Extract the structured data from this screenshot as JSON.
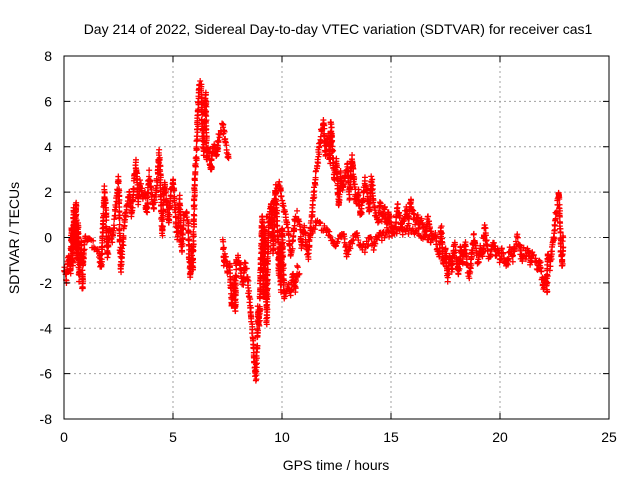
{
  "chart_data": {
    "type": "scatter",
    "title": "Day 214 of 2022, Sidereal Day-to-day VTEC variation (SDTVAR) for receiver cas1",
    "xlabel": "GPS time / hours",
    "ylabel": "SDTVAR / TECUs",
    "xlim": [
      0,
      25
    ],
    "ylim": [
      -8,
      8
    ],
    "xticks": [
      "0",
      "5",
      "10",
      "15",
      "20",
      "25"
    ],
    "yticks": [
      "-8",
      "-6",
      "-4",
      "-2",
      "0",
      "2",
      "4",
      "6",
      "8"
    ],
    "grid": true,
    "marker": "+",
    "color": "#ff0000",
    "series": [
      {
        "name": "SDTVAR",
        "trace": [
          [
            0.0,
            -1.4
          ],
          [
            0.1,
            -1.9
          ],
          [
            0.2,
            -0.8
          ],
          [
            0.3,
            -1.5
          ],
          [
            0.35,
            0.4
          ],
          [
            0.4,
            -1.2
          ],
          [
            0.45,
            1.2
          ],
          [
            0.5,
            -0.4
          ],
          [
            0.55,
            1.6
          ],
          [
            0.6,
            -1.0
          ],
          [
            0.65,
            0.6
          ],
          [
            0.7,
            -1.8
          ],
          [
            0.8,
            -0.2
          ],
          [
            0.85,
            -2.2
          ],
          [
            0.9,
            -0.6
          ],
          [
            1.0,
            0.0
          ],
          [
            1.6,
            -0.6
          ],
          [
            1.7,
            -1.4
          ],
          [
            1.75,
            -0.2
          ],
          [
            1.8,
            0.6
          ],
          [
            1.85,
            2.1
          ],
          [
            1.9,
            1.5
          ],
          [
            2.0,
            -0.8
          ],
          [
            2.1,
            0.4
          ],
          [
            2.2,
            -0.1
          ],
          [
            2.3,
            0.6
          ],
          [
            2.4,
            1.6
          ],
          [
            2.5,
            2.6
          ],
          [
            2.6,
            -1.4
          ],
          [
            2.7,
            -0.3
          ],
          [
            2.8,
            0.9
          ],
          [
            2.9,
            1.4
          ],
          [
            3.0,
            2.0
          ],
          [
            3.1,
            1.0
          ],
          [
            3.2,
            2.2
          ],
          [
            3.3,
            3.3
          ],
          [
            3.4,
            1.6
          ],
          [
            3.5,
            2.4
          ],
          [
            3.6,
            1.8
          ],
          [
            3.7,
            2.0
          ],
          [
            3.8,
            1.1
          ],
          [
            3.9,
            2.8
          ],
          [
            4.0,
            2.1
          ],
          [
            4.1,
            1.3
          ],
          [
            4.2,
            1.8
          ],
          [
            4.3,
            2.7
          ],
          [
            4.35,
            3.7
          ],
          [
            4.4,
            3.2
          ],
          [
            4.5,
            0.2
          ],
          [
            4.6,
            2.4
          ],
          [
            4.7,
            1.7
          ],
          [
            4.8,
            0.6
          ],
          [
            4.9,
            2.0
          ],
          [
            5.0,
            2.6
          ],
          [
            5.1,
            1.3
          ],
          [
            5.2,
            0.0
          ],
          [
            5.3,
            1.7
          ],
          [
            5.4,
            -0.5
          ],
          [
            5.5,
            0.9
          ],
          [
            5.6,
            1.1
          ],
          [
            5.7,
            0.5
          ],
          [
            5.75,
            -1.0
          ],
          [
            5.8,
            -1.7
          ],
          [
            5.85,
            -0.3
          ],
          [
            5.9,
            -1.5
          ],
          [
            5.95,
            0.4
          ],
          [
            6.0,
            2.6
          ],
          [
            6.05,
            3.3
          ],
          [
            6.1,
            4.2
          ],
          [
            6.15,
            5.6
          ],
          [
            6.2,
            6.8
          ],
          [
            6.3,
            6.7
          ],
          [
            6.35,
            4.5
          ],
          [
            6.4,
            3.7
          ],
          [
            6.45,
            5.4
          ],
          [
            6.5,
            6.3
          ],
          [
            6.55,
            3.4
          ],
          [
            6.6,
            3.9
          ],
          [
            6.7,
            3.2
          ],
          [
            6.75,
            2.9
          ],
          [
            6.8,
            3.8
          ],
          [
            6.9,
            4.1
          ],
          [
            7.0,
            3.6
          ],
          [
            7.1,
            4.5
          ],
          [
            7.2,
            4.8
          ],
          [
            7.3,
            5.0
          ],
          [
            7.4,
            4.1
          ],
          [
            7.5,
            3.7
          ],
          [
            7.55,
            3.5
          ],
          [
            7.3,
            -0.2
          ],
          [
            7.35,
            -1.2
          ],
          [
            7.4,
            -0.8
          ],
          [
            7.5,
            -1.5
          ],
          [
            7.6,
            -1.2
          ],
          [
            7.7,
            -3.1
          ],
          [
            7.8,
            -1.9
          ],
          [
            7.85,
            -3.2
          ],
          [
            7.9,
            -1.0
          ],
          [
            8.0,
            -0.9
          ],
          [
            8.1,
            -1.4
          ],
          [
            8.2,
            -2.1
          ],
          [
            8.3,
            -1.2
          ],
          [
            8.4,
            -1.7
          ],
          [
            8.5,
            -2.6
          ],
          [
            8.6,
            -3.7
          ],
          [
            8.65,
            -4.3
          ],
          [
            8.7,
            -5.1
          ],
          [
            8.75,
            -5.7
          ],
          [
            8.8,
            -6.2
          ],
          [
            8.85,
            -5.0
          ],
          [
            8.9,
            -3.2
          ],
          [
            8.95,
            -3.9
          ],
          [
            9.0,
            -2.2
          ],
          [
            9.05,
            -0.4
          ],
          [
            9.1,
            0.9
          ],
          [
            9.15,
            -2.6
          ],
          [
            9.2,
            0.4
          ],
          [
            9.25,
            -1.1
          ],
          [
            9.3,
            -3.7
          ],
          [
            9.35,
            -1.0
          ],
          [
            9.4,
            0.6
          ],
          [
            9.5,
            1.5
          ],
          [
            9.6,
            -0.6
          ],
          [
            9.7,
            2.2
          ],
          [
            9.8,
            0.3
          ],
          [
            9.85,
            -1.6
          ],
          [
            9.9,
            -0.4
          ],
          [
            9.95,
            -2.3
          ],
          [
            10.0,
            0.5
          ],
          [
            10.05,
            -1.2
          ],
          [
            10.1,
            -2.7
          ],
          [
            10.2,
            -2.4
          ],
          [
            10.3,
            -2.1
          ],
          [
            10.4,
            -2.6
          ],
          [
            10.5,
            -1.6
          ],
          [
            10.6,
            -2.3
          ],
          [
            10.7,
            -1.4
          ],
          [
            10.8,
            -1.6
          ],
          [
            9.3,
            0.8
          ],
          [
            9.5,
            0.6
          ],
          [
            9.7,
            2.0
          ],
          [
            9.9,
            2.4
          ],
          [
            10.0,
            1.6
          ],
          [
            10.1,
            1.2
          ],
          [
            10.2,
            0.8
          ],
          [
            10.3,
            0.2
          ],
          [
            10.4,
            -0.7
          ],
          [
            10.5,
            -0.2
          ],
          [
            10.6,
            0.9
          ],
          [
            10.7,
            1.0
          ],
          [
            10.8,
            0.6
          ],
          [
            10.9,
            -0.4
          ],
          [
            11.0,
            0.5
          ],
          [
            11.1,
            -0.2
          ],
          [
            11.2,
            -0.9
          ],
          [
            11.3,
            0.3
          ],
          [
            11.4,
            1.2
          ],
          [
            11.5,
            2.3
          ],
          [
            11.6,
            3.0
          ],
          [
            11.7,
            3.9
          ],
          [
            11.8,
            4.6
          ],
          [
            11.9,
            5.2
          ],
          [
            12.0,
            3.7
          ],
          [
            12.1,
            4.5
          ],
          [
            12.2,
            3.3
          ],
          [
            12.25,
            5.1
          ],
          [
            12.3,
            4.0
          ],
          [
            12.4,
            2.6
          ],
          [
            12.5,
            3.4
          ],
          [
            12.6,
            1.4
          ],
          [
            12.7,
            2.8
          ],
          [
            12.8,
            2.1
          ],
          [
            12.9,
            2.7
          ],
          [
            13.0,
            3.2
          ],
          [
            13.1,
            1.8
          ],
          [
            13.2,
            3.6
          ],
          [
            13.3,
            2.5
          ],
          [
            13.4,
            1.5
          ],
          [
            13.5,
            2.0
          ],
          [
            13.6,
            0.9
          ],
          [
            13.7,
            1.6
          ],
          [
            13.8,
            2.5
          ],
          [
            13.9,
            2.0
          ],
          [
            14.0,
            1.2
          ],
          [
            14.1,
            2.6
          ],
          [
            14.2,
            1.6
          ],
          [
            14.3,
            1.0
          ],
          [
            14.4,
            0.6
          ],
          [
            14.5,
            1.5
          ],
          [
            14.6,
            0.8
          ],
          [
            14.7,
            1.3
          ],
          [
            14.8,
            0.5
          ],
          [
            14.9,
            1.1
          ],
          [
            15.0,
            0.7
          ],
          [
            15.1,
            0.3
          ],
          [
            15.2,
            0.6
          ],
          [
            15.3,
            1.4
          ],
          [
            15.4,
            0.9
          ],
          [
            15.5,
            0.4
          ],
          [
            15.6,
            0.8
          ],
          [
            15.7,
            1.2
          ],
          [
            15.8,
            0.6
          ],
          [
            15.9,
            1.7
          ],
          [
            16.0,
            1.1
          ],
          [
            16.1,
            0.7
          ],
          [
            16.2,
            1.0
          ],
          [
            16.3,
            0.5
          ],
          [
            16.4,
            0.8
          ],
          [
            16.5,
            0.4
          ],
          [
            16.6,
            0.2
          ],
          [
            16.7,
            0.9
          ],
          [
            16.8,
            0.3
          ],
          [
            16.9,
            0.1
          ],
          [
            11.2,
            0.0
          ],
          [
            11.6,
            0.6
          ],
          [
            12.0,
            0.4
          ],
          [
            12.4,
            -0.3
          ],
          [
            12.8,
            0.2
          ],
          [
            13.0,
            -0.8
          ],
          [
            13.2,
            -0.2
          ],
          [
            13.4,
            0.1
          ],
          [
            13.6,
            -0.3
          ],
          [
            13.8,
            -0.5
          ],
          [
            14.0,
            0.0
          ],
          [
            14.2,
            -0.4
          ],
          [
            14.4,
            0.2
          ],
          [
            14.6,
            0.0
          ],
          [
            14.8,
            0.3
          ],
          [
            15.0,
            0.1
          ],
          [
            15.3,
            0.3
          ],
          [
            15.6,
            0.2
          ],
          [
            16.0,
            0.4
          ],
          [
            16.4,
            0.1
          ],
          [
            16.8,
            -0.1
          ],
          [
            17.0,
            0.2
          ],
          [
            17.1,
            -0.4
          ],
          [
            17.2,
            -0.8
          ],
          [
            17.3,
            0.4
          ],
          [
            17.4,
            -1.2
          ],
          [
            17.5,
            -0.5
          ],
          [
            17.6,
            -1.8
          ],
          [
            17.7,
            -0.9
          ],
          [
            17.8,
            -1.4
          ],
          [
            17.9,
            -0.3
          ],
          [
            18.0,
            -0.8
          ],
          [
            18.1,
            -1.6
          ],
          [
            18.2,
            -0.5
          ],
          [
            18.3,
            -1.1
          ],
          [
            18.4,
            -0.2
          ],
          [
            18.5,
            -1.3
          ],
          [
            18.6,
            -1.7
          ],
          [
            18.7,
            -0.8
          ],
          [
            18.8,
            0.1
          ],
          [
            18.9,
            -0.6
          ],
          [
            19.0,
            -1.2
          ],
          [
            19.1,
            -0.5
          ],
          [
            19.2,
            -0.9
          ],
          [
            19.3,
            0.5
          ],
          [
            19.4,
            -0.4
          ],
          [
            19.5,
            -0.9
          ],
          [
            19.6,
            -0.6
          ],
          [
            19.7,
            -0.2
          ],
          [
            19.8,
            -0.8
          ],
          [
            19.9,
            -0.5
          ],
          [
            20.0,
            -1.0
          ],
          [
            20.1,
            -0.6
          ],
          [
            20.2,
            -0.9
          ],
          [
            20.3,
            -1.3
          ],
          [
            20.4,
            -0.7
          ],
          [
            20.5,
            -0.5
          ],
          [
            20.6,
            -0.9
          ],
          [
            20.7,
            -0.3
          ],
          [
            20.8,
            0.0
          ],
          [
            20.9,
            -0.4
          ],
          [
            21.0,
            -1.0
          ],
          [
            21.1,
            -0.6
          ],
          [
            21.2,
            -0.8
          ],
          [
            21.3,
            -0.5
          ],
          [
            21.4,
            -1.1
          ],
          [
            21.5,
            -0.8
          ],
          [
            21.6,
            -1.0
          ],
          [
            21.7,
            -1.3
          ],
          [
            21.8,
            -0.9
          ],
          [
            21.9,
            -1.6
          ],
          [
            22.0,
            -2.2
          ],
          [
            22.1,
            -1.8
          ],
          [
            22.15,
            -2.3
          ],
          [
            22.2,
            -0.8
          ],
          [
            22.3,
            -1.3
          ],
          [
            22.4,
            -0.4
          ],
          [
            22.5,
            0.4
          ],
          [
            22.6,
            1.2
          ],
          [
            22.7,
            1.9
          ],
          [
            22.75,
            0.8
          ],
          [
            22.8,
            -0.6
          ],
          [
            22.85,
            -1.2
          ],
          [
            22.9,
            0.0
          ]
        ]
      }
    ]
  }
}
